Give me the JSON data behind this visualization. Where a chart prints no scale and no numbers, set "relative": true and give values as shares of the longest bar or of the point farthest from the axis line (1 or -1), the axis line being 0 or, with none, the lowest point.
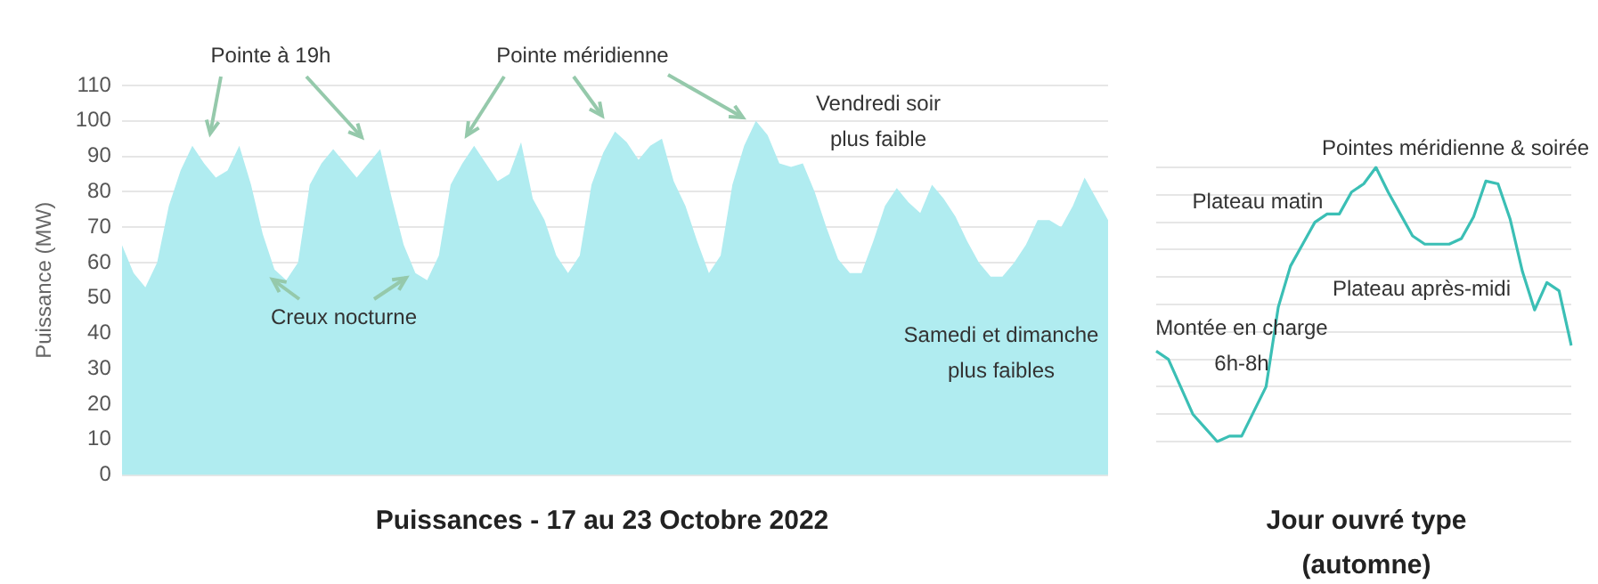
{
  "chart_data": [
    {
      "type": "area",
      "title": "Puissances - 17 au 23 Octobre 2022",
      "ylabel": "Puissance (MW)",
      "categories": [
        null,
        null,
        null,
        null,
        null,
        null,
        null,
        null,
        null,
        null,
        null,
        null,
        null,
        null,
        null,
        null,
        null,
        null,
        null,
        null,
        null,
        null,
        null,
        null,
        null,
        null,
        null,
        null,
        null,
        null,
        null,
        null,
        null,
        null,
        null,
        null,
        null,
        null,
        null,
        null,
        null,
        null,
        null,
        null,
        null,
        null,
        null,
        null,
        null,
        null,
        null,
        null,
        null,
        null,
        null,
        null,
        null,
        null,
        null,
        null,
        null,
        null,
        null,
        null,
        null,
        null,
        null,
        null,
        null,
        null,
        null,
        null,
        null,
        null,
        null,
        null,
        null,
        null,
        null,
        null,
        null,
        null,
        null,
        null,
        null
      ],
      "values": [
        65,
        57,
        53,
        60,
        76,
        86,
        93,
        88,
        84,
        86,
        93,
        82,
        68,
        58,
        55,
        60,
        82,
        88,
        92,
        88,
        84,
        88,
        92,
        78,
        65,
        57,
        55,
        62,
        82,
        88,
        93,
        88,
        83,
        85,
        94,
        78,
        72,
        62,
        57,
        62,
        82,
        91,
        97,
        94,
        89,
        93,
        95,
        83,
        76,
        66,
        57,
        62,
        82,
        93,
        100,
        96,
        88,
        87,
        88,
        80,
        70,
        61,
        57,
        57,
        66,
        76,
        81,
        77,
        74,
        82,
        78,
        73,
        66,
        60,
        56,
        56,
        60,
        65,
        72,
        72,
        70,
        76,
        84,
        78,
        72
      ],
      "color": "#b0ecf0",
      "ylim": [
        0,
        110
      ],
      "yticks": [
        0,
        10,
        20,
        30,
        40,
        50,
        60,
        70,
        80,
        90,
        100,
        110
      ],
      "grid": "y",
      "annotations": [
        "Pointe à 19h",
        "Pointe méridienne",
        "Creux nocturne",
        "Vendredi soir plus faible",
        "Samedi et dimanche plus faibles"
      ]
    },
    {
      "type": "line",
      "title": "Jour ouvré type (automne)",
      "relative": true,
      "categories": [
        null,
        null,
        null,
        null,
        null,
        null,
        null,
        null,
        null,
        null,
        null,
        null,
        null,
        null,
        null,
        null,
        null,
        null,
        null,
        null,
        null,
        null,
        null,
        null,
        null,
        null,
        null,
        null,
        null,
        null,
        null,
        null,
        null,
        null,
        null
      ],
      "values": [
        0.33,
        0.3,
        0.2,
        0.1,
        0.05,
        0,
        0.02,
        0.02,
        0.11,
        0.2,
        0.49,
        0.64,
        0.72,
        0.8,
        0.83,
        0.83,
        0.91,
        0.94,
        1,
        0.91,
        0.83,
        0.75,
        0.72,
        0.72,
        0.72,
        0.74,
        0.82,
        0.95,
        0.94,
        0.81,
        0.62,
        0.48,
        0.58,
        0.55,
        0.35
      ],
      "color": "#3bbfb5",
      "grid": "y",
      "annotations": [
        "Pointes méridienne & soirée",
        "Plateau matin",
        "Plateau après-midi",
        "Montée en charge 6h-8h"
      ]
    }
  ]
}
